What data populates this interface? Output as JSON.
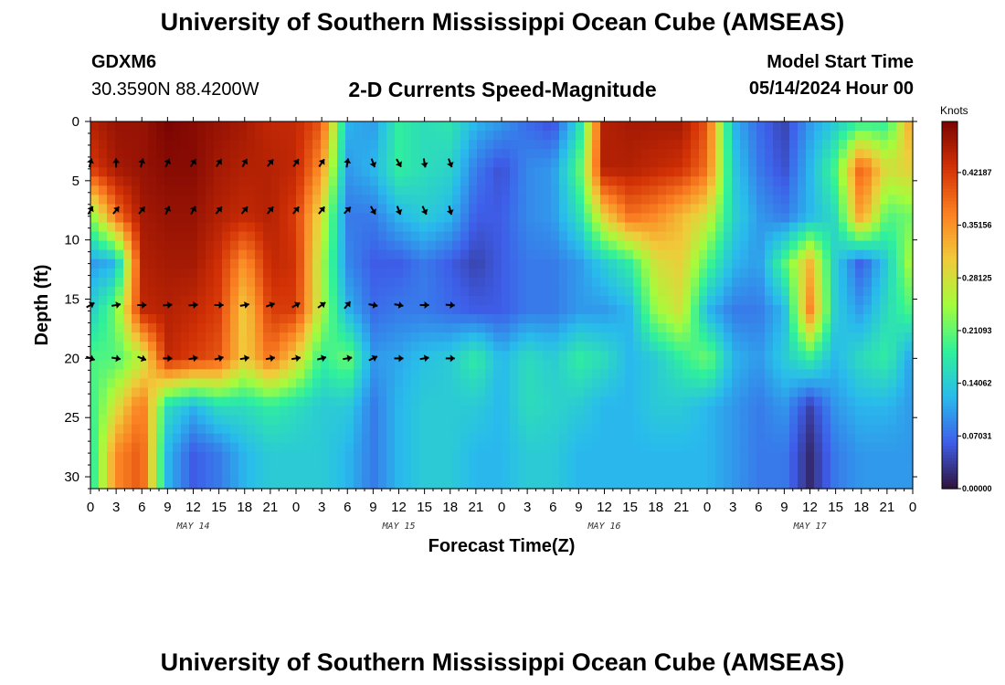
{
  "page": {
    "title": "University of Southern Mississippi Ocean Cube (AMSEAS)",
    "footer_title": "University of Southern Mississippi Ocean Cube (AMSEAS)",
    "station": "GDXM6",
    "coords": "30.3590N  88.4200W",
    "subtitle": "2-D Currents Speed-Magnitude",
    "model_start_label": "Model Start Time",
    "model_start_value": "05/14/2024 Hour 00"
  },
  "chart_data": {
    "type": "heatmap",
    "title": "2-D Currents Speed-Magnitude",
    "xlabel": "Forecast Time(Z)",
    "ylabel": "Depth (ft)",
    "x_ticks": [
      "0",
      "3",
      "6",
      "9",
      "12",
      "15",
      "18",
      "21",
      "0",
      "3",
      "6",
      "9",
      "12",
      "15",
      "18",
      "21",
      "0",
      "3",
      "6",
      "9",
      "12",
      "15",
      "18",
      "21",
      "0",
      "3",
      "6",
      "9",
      "12",
      "15",
      "18",
      "21",
      "0"
    ],
    "x_range_hours": [
      0,
      96
    ],
    "day_labels": [
      {
        "label": "MAY 14",
        "hour": 12
      },
      {
        "label": "MAY 15",
        "hour": 36
      },
      {
        "label": "MAY 16",
        "hour": 60
      },
      {
        "label": "MAY 17",
        "hour": 84
      }
    ],
    "y_ticks": [
      0,
      5,
      10,
      15,
      20,
      25,
      30
    ],
    "y_range": [
      0,
      31
    ],
    "colorbar": {
      "label": "Knots",
      "ticks": [
        "0.00000",
        "0.07031",
        "0.14062",
        "0.21093",
        "0.28125",
        "0.35156",
        "0.42187"
      ],
      "tick_values": [
        0,
        0.07031,
        0.14062,
        0.21093,
        0.28125,
        0.35156,
        0.42187
      ],
      "range": [
        0,
        0.49
      ],
      "colors": [
        "#30123b",
        "#3e5ee9",
        "#29bbec",
        "#30f19a",
        "#a4fc3c",
        "#f1ca3a",
        "#fb8022",
        "#d23105",
        "#7a0403"
      ]
    },
    "depths": [
      0,
      4,
      8,
      12,
      16,
      20,
      24,
      28
    ],
    "hours": [
      0,
      3,
      6,
      9,
      12,
      15,
      18,
      21,
      24,
      27,
      30,
      33,
      36,
      39,
      42,
      45,
      48,
      51,
      54,
      57,
      60,
      63,
      66,
      69,
      72,
      75,
      78,
      81,
      84,
      87,
      90,
      93,
      96
    ],
    "speed": [
      [
        0.45,
        0.47,
        0.47,
        0.49,
        0.48,
        0.47,
        0.46,
        0.44,
        0.44,
        0.4,
        0.12,
        0.1,
        0.18,
        0.16,
        0.17,
        0.12,
        0.1,
        0.07,
        0.05,
        0.15,
        0.45,
        0.46,
        0.46,
        0.46,
        0.4,
        0.12,
        0.07,
        0.04,
        0.1,
        0.14,
        0.18,
        0.18,
        0.35
      ],
      [
        0.42,
        0.46,
        0.47,
        0.48,
        0.48,
        0.46,
        0.45,
        0.45,
        0.44,
        0.35,
        0.1,
        0.12,
        0.18,
        0.16,
        0.15,
        0.08,
        0.05,
        0.09,
        0.1,
        0.2,
        0.45,
        0.45,
        0.44,
        0.43,
        0.38,
        0.14,
        0.08,
        0.05,
        0.12,
        0.2,
        0.4,
        0.28,
        0.3
      ],
      [
        0.22,
        0.38,
        0.46,
        0.47,
        0.47,
        0.45,
        0.44,
        0.45,
        0.42,
        0.28,
        0.08,
        0.08,
        0.12,
        0.14,
        0.12,
        0.06,
        0.06,
        0.09,
        0.1,
        0.16,
        0.3,
        0.38,
        0.36,
        0.32,
        0.28,
        0.15,
        0.1,
        0.08,
        0.12,
        0.16,
        0.35,
        0.2,
        0.22
      ],
      [
        0.1,
        0.12,
        0.45,
        0.46,
        0.46,
        0.43,
        0.35,
        0.44,
        0.43,
        0.25,
        0.09,
        0.06,
        0.06,
        0.08,
        0.06,
        0.04,
        0.06,
        0.08,
        0.08,
        0.1,
        0.14,
        0.18,
        0.28,
        0.3,
        0.2,
        0.12,
        0.1,
        0.2,
        0.32,
        0.14,
        0.06,
        0.14,
        0.26
      ],
      [
        0.14,
        0.22,
        0.44,
        0.45,
        0.44,
        0.42,
        0.3,
        0.42,
        0.42,
        0.25,
        0.12,
        0.07,
        0.08,
        0.08,
        0.07,
        0.06,
        0.06,
        0.08,
        0.08,
        0.1,
        0.1,
        0.12,
        0.24,
        0.28,
        0.12,
        0.08,
        0.08,
        0.12,
        0.36,
        0.14,
        0.1,
        0.16,
        0.2
      ],
      [
        0.2,
        0.2,
        0.26,
        0.44,
        0.42,
        0.4,
        0.3,
        0.38,
        0.3,
        0.18,
        0.22,
        0.1,
        0.11,
        0.13,
        0.14,
        0.18,
        0.12,
        0.16,
        0.14,
        0.18,
        0.16,
        0.12,
        0.14,
        0.18,
        0.22,
        0.12,
        0.1,
        0.14,
        0.18,
        0.12,
        0.16,
        0.18,
        0.1
      ],
      [
        0.18,
        0.28,
        0.38,
        0.16,
        0.12,
        0.16,
        0.16,
        0.18,
        0.16,
        0.14,
        0.14,
        0.08,
        0.12,
        0.14,
        0.14,
        0.14,
        0.12,
        0.16,
        0.15,
        0.14,
        0.12,
        0.12,
        0.14,
        0.14,
        0.12,
        0.1,
        0.08,
        0.1,
        0.04,
        0.1,
        0.12,
        0.12,
        0.1
      ],
      [
        0.16,
        0.36,
        0.4,
        0.12,
        0.06,
        0.08,
        0.12,
        0.14,
        0.14,
        0.14,
        0.12,
        0.08,
        0.12,
        0.14,
        0.14,
        0.12,
        0.12,
        0.14,
        0.14,
        0.12,
        0.12,
        0.12,
        0.12,
        0.12,
        0.12,
        0.1,
        0.08,
        0.08,
        0.02,
        0.08,
        0.1,
        0.1,
        0.1
      ]
    ],
    "arrow_depths": [
      0,
      3.5,
      7.5,
      11.5,
      15.5,
      20,
      24,
      28
    ],
    "arrow_angles_deg": [
      [
        null,
        null,
        null,
        null,
        null,
        null,
        null,
        null,
        null,
        null,
        null,
        null,
        null,
        null,
        null,
        null,
        null,
        null,
        null,
        null,
        null,
        null,
        null,
        null,
        null,
        null,
        null,
        null,
        null,
        null,
        null,
        null,
        null
      ],
      [
        15,
        0,
        15,
        25,
        35,
        35,
        30,
        40,
        35,
        35,
        10,
        160,
        150,
        170,
        160,
        null,
        null,
        null,
        null,
        null,
        null,
        null,
        null,
        null,
        null,
        null,
        null,
        null,
        null,
        null,
        null,
        null,
        null
      ],
      [
        30,
        40,
        40,
        25,
        30,
        40,
        40,
        40,
        40,
        40,
        45,
        150,
        160,
        155,
        165,
        null,
        null,
        null,
        null,
        null,
        null,
        null,
        null,
        null,
        null,
        null,
        null,
        null,
        null,
        null,
        null,
        null,
        null
      ],
      [
        null,
        null,
        null,
        null,
        null,
        null,
        null,
        null,
        null,
        null,
        null,
        null,
        null,
        null,
        null,
        null,
        null,
        null,
        null,
        null,
        null,
        null,
        null,
        null,
        null,
        null,
        null,
        null,
        null,
        null,
        null,
        null,
        null
      ],
      [
        60,
        80,
        90,
        85,
        85,
        90,
        80,
        70,
        60,
        55,
        40,
        100,
        100,
        90,
        95,
        null,
        null,
        null,
        null,
        null,
        null,
        null,
        null,
        null,
        null,
        null,
        null,
        null,
        null,
        null,
        null,
        null,
        null
      ],
      [
        110,
        100,
        110,
        90,
        80,
        75,
        80,
        80,
        80,
        75,
        80,
        65,
        90,
        80,
        90,
        null,
        null,
        null,
        null,
        null,
        null,
        null,
        null,
        null,
        null,
        null,
        null,
        null,
        null,
        null,
        null,
        null,
        null
      ],
      [
        null,
        null,
        null,
        null,
        null,
        null,
        null,
        null,
        null,
        null,
        null,
        null,
        null,
        null,
        null,
        null,
        null,
        null,
        null,
        null,
        null,
        null,
        null,
        null,
        null,
        null,
        null,
        null,
        null,
        null,
        null,
        null,
        null
      ],
      [
        null,
        null,
        null,
        null,
        null,
        null,
        null,
        null,
        null,
        null,
        null,
        null,
        null,
        null,
        null,
        null,
        null,
        null,
        null,
        null,
        null,
        null,
        null,
        null,
        null,
        null,
        null,
        null,
        null,
        null,
        null,
        null,
        null
      ]
    ]
  }
}
